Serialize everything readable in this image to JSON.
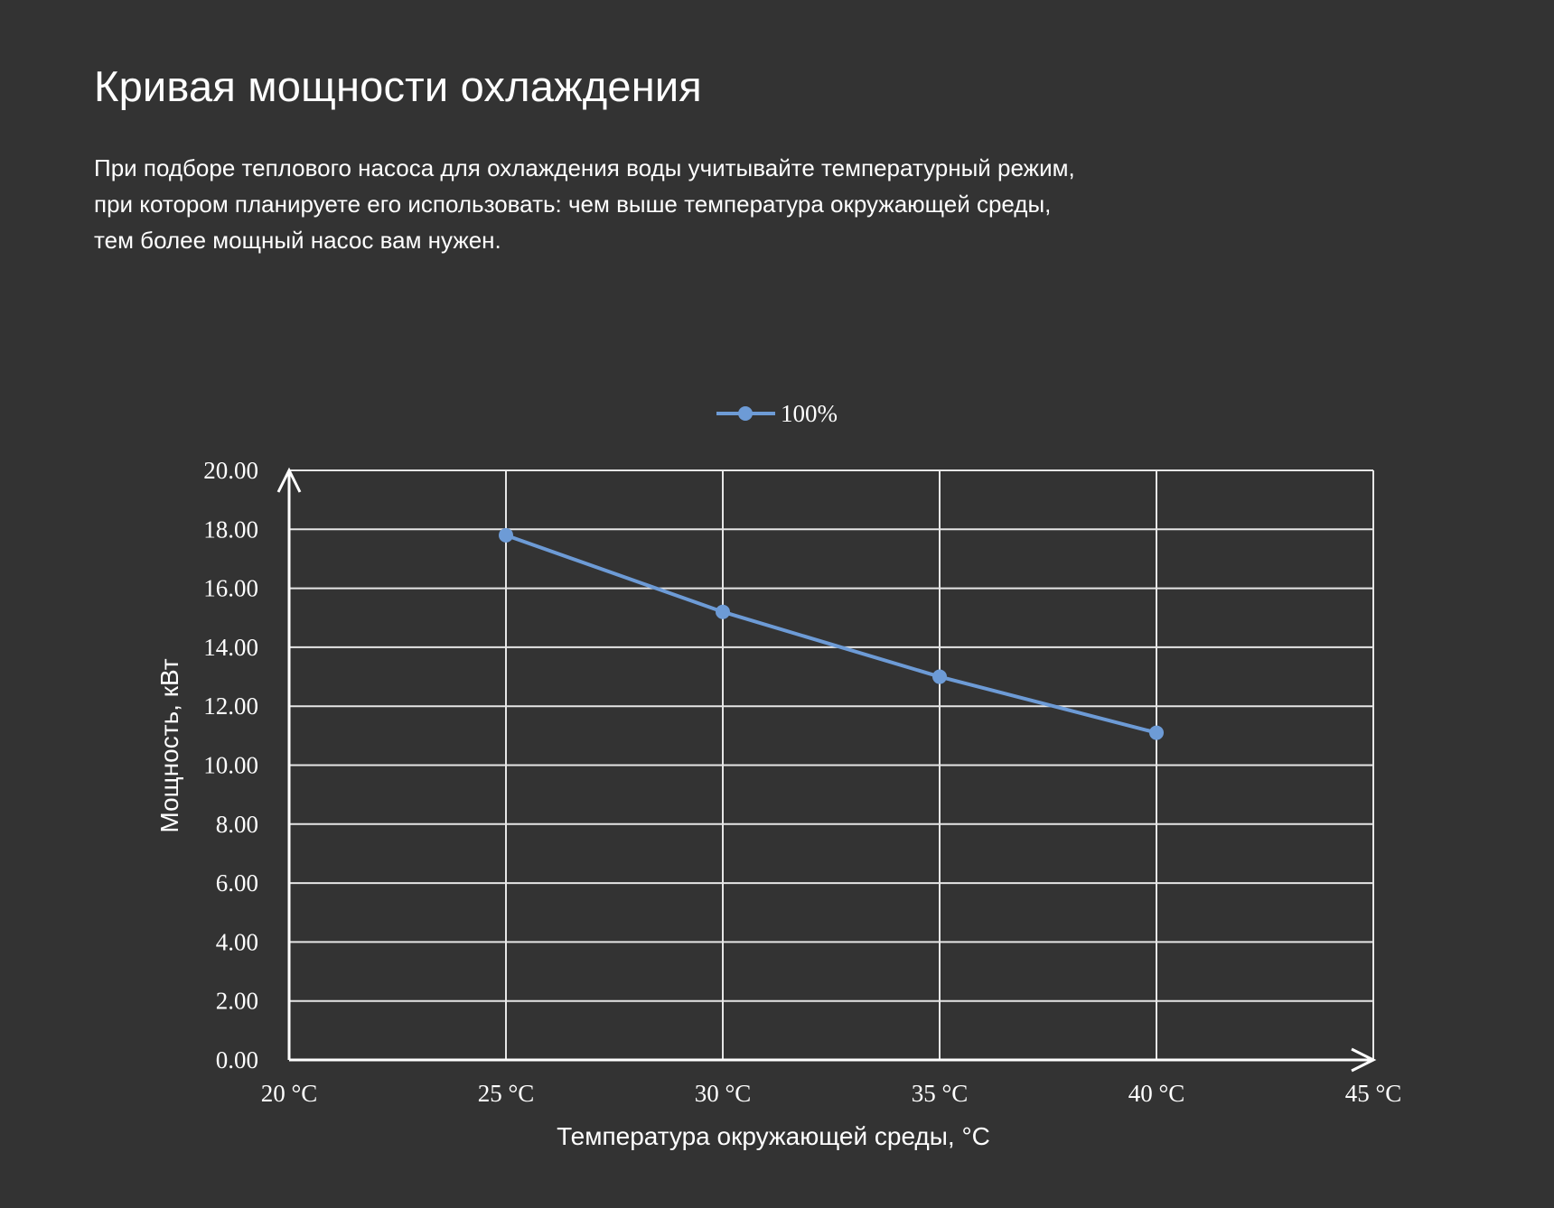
{
  "page": {
    "title": "Кривая мощности охлаждения",
    "paragraph_lines": [
      "При подборе теплового насоса для охлаждения воды учитывайте температурный режим,",
      "при котором планируете его использовать: чем выше температура окружающей среды,",
      "тем более мощный насос вам нужен."
    ]
  },
  "colors": {
    "background": "#333333",
    "grid": "#e6e6e6",
    "series": "#6d9bd6",
    "text": "#ffffff"
  },
  "chart_data": {
    "type": "line",
    "title": "",
    "xlabel": "Температура окружающей среды, °C",
    "ylabel": "Мощность, кВт",
    "x_ticks": [
      "20 °C",
      "25 °C",
      "30 °C",
      "35 °C",
      "40 °C",
      "45 °C"
    ],
    "y_ticks": [
      "0.00",
      "2.00",
      "4.00",
      "6.00",
      "8.00",
      "10.00",
      "12.00",
      "14.00",
      "16.00",
      "18.00",
      "20.00"
    ],
    "xlim": [
      20,
      45
    ],
    "ylim": [
      0,
      20
    ],
    "grid": true,
    "legend_position": "top-center",
    "series": [
      {
        "name": "100%",
        "x": [
          25,
          30,
          35,
          40
        ],
        "y": [
          17.8,
          15.2,
          13.0,
          11.1
        ]
      }
    ]
  }
}
